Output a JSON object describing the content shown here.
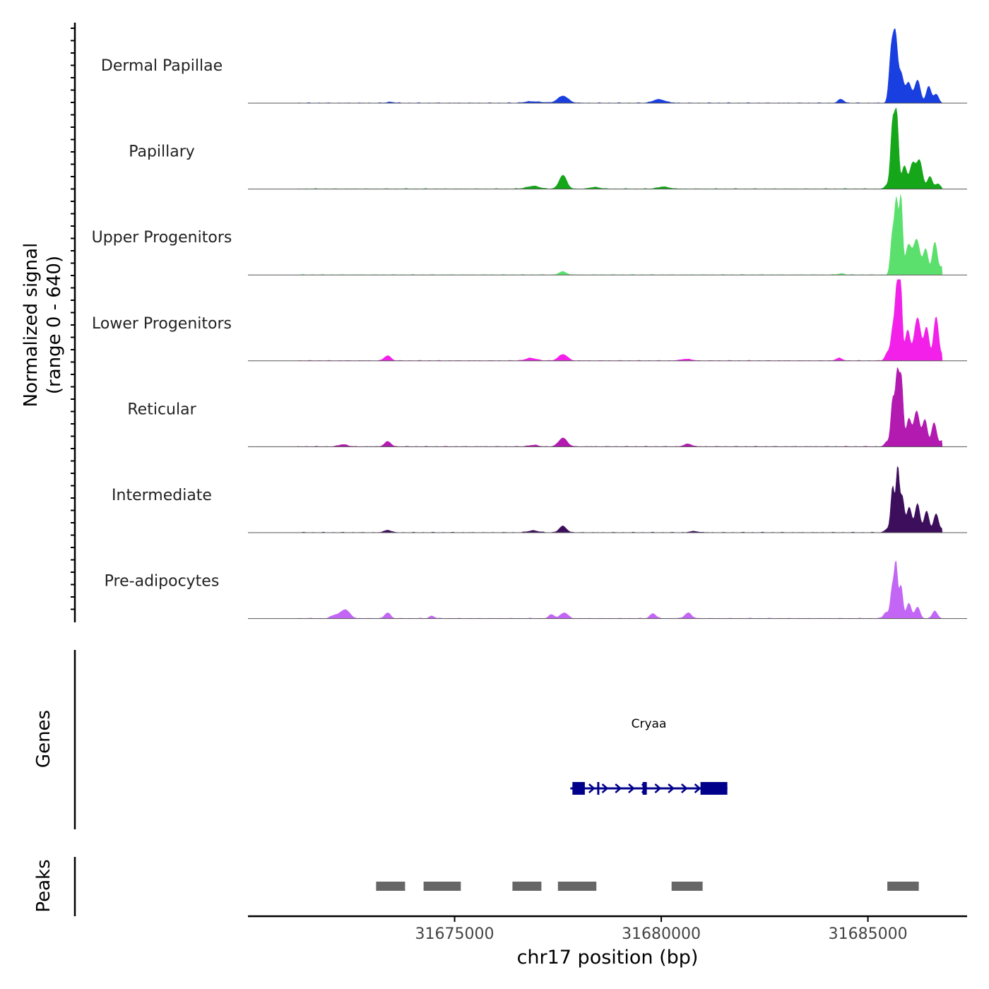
{
  "chart_data": {
    "type": "area",
    "title": "",
    "xlabel": "chr17 position (bp)",
    "ylabel_line1": "Normalized signal",
    "ylabel_line2": "(range 0 - 640)",
    "y_range": [
      0,
      640
    ],
    "x_range": [
      31670000,
      31687400
    ],
    "x_ticks": [
      31675000,
      31680000,
      31685000
    ],
    "x_tick_labels": [
      "31675000",
      "31680000",
      "31685000"
    ],
    "tracks": [
      {
        "name": "Dermal Papillae",
        "color": "#1a3fe0",
        "peaks": [
          [
            31677620,
            55,
            130
          ],
          [
            31679950,
            28,
            150
          ],
          [
            31673450,
            8,
            90
          ],
          [
            31676900,
            12,
            200
          ],
          [
            31684350,
            30,
            70
          ],
          [
            31685570,
            420,
            55
          ],
          [
            31685670,
            470,
            50
          ],
          [
            31685800,
            230,
            60
          ],
          [
            31685980,
            160,
            70
          ],
          [
            31686200,
            180,
            70
          ],
          [
            31686470,
            130,
            60
          ],
          [
            31686650,
            70,
            60
          ]
        ]
      },
      {
        "name": "Papillary",
        "color": "#15a61a",
        "peaks": [
          [
            31677620,
            110,
            90
          ],
          [
            31676900,
            22,
            160
          ],
          [
            31678400,
            14,
            120
          ],
          [
            31680050,
            16,
            150
          ],
          [
            31685470,
            30,
            60
          ],
          [
            31685600,
            520,
            50
          ],
          [
            31685700,
            550,
            45
          ],
          [
            31685880,
            180,
            60
          ],
          [
            31686080,
            200,
            70
          ],
          [
            31686250,
            220,
            70
          ],
          [
            31686500,
            100,
            60
          ],
          [
            31686700,
            40,
            60
          ]
        ]
      },
      {
        "name": "Upper Progenitors",
        "color": "#5be06d",
        "peaks": [
          [
            31677620,
            25,
            90
          ],
          [
            31670900,
            10,
            100
          ],
          [
            31684350,
            10,
            80
          ],
          [
            31685590,
            300,
            45
          ],
          [
            31685690,
            580,
            45
          ],
          [
            31685800,
            600,
            40
          ],
          [
            31685980,
            230,
            70
          ],
          [
            31686180,
            280,
            80
          ],
          [
            31686400,
            200,
            60
          ],
          [
            31686620,
            260,
            60
          ],
          [
            31686800,
            60,
            60
          ]
        ]
      },
      {
        "name": "Lower Progenitors",
        "color": "#f220e8",
        "peaks": [
          [
            31673380,
            40,
            80
          ],
          [
            31677620,
            50,
            110
          ],
          [
            31676850,
            20,
            140
          ],
          [
            31680600,
            14,
            120
          ],
          [
            31684300,
            20,
            80
          ],
          [
            31685480,
            70,
            60
          ],
          [
            31685600,
            230,
            45
          ],
          [
            31685700,
            560,
            45
          ],
          [
            31685790,
            600,
            40
          ],
          [
            31685960,
            240,
            60
          ],
          [
            31686200,
            340,
            80
          ],
          [
            31686420,
            260,
            60
          ],
          [
            31686650,
            350,
            60
          ],
          [
            31686850,
            60,
            60
          ]
        ]
      },
      {
        "name": "Reticular",
        "color": "#b21ab0",
        "peaks": [
          [
            31673380,
            40,
            80
          ],
          [
            31672300,
            18,
            100
          ],
          [
            31677620,
            70,
            100
          ],
          [
            31680650,
            22,
            90
          ],
          [
            31676900,
            12,
            120
          ],
          [
            31685470,
            40,
            60
          ],
          [
            31685600,
            360,
            45
          ],
          [
            31685710,
            560,
            45
          ],
          [
            31685810,
            520,
            45
          ],
          [
            31685990,
            220,
            60
          ],
          [
            31686180,
            280,
            70
          ],
          [
            31686380,
            210,
            60
          ],
          [
            31686600,
            190,
            60
          ],
          [
            31686800,
            50,
            60
          ]
        ]
      },
      {
        "name": "Intermediate",
        "color": "#3c0e5c",
        "peaks": [
          [
            31673380,
            20,
            80
          ],
          [
            31676900,
            16,
            120
          ],
          [
            31677620,
            50,
            90
          ],
          [
            31680800,
            10,
            100
          ],
          [
            31685470,
            30,
            60
          ],
          [
            31685600,
            360,
            45
          ],
          [
            31685720,
            500,
            40
          ],
          [
            31685830,
            280,
            50
          ],
          [
            31686000,
            200,
            60
          ],
          [
            31686200,
            230,
            60
          ],
          [
            31686420,
            170,
            60
          ],
          [
            31686650,
            150,
            60
          ],
          [
            31686850,
            40,
            60
          ]
        ]
      },
      {
        "name": "Pre-adipocytes",
        "color": "#c366f5",
        "peaks": [
          [
            31672350,
            70,
            110
          ],
          [
            31672100,
            25,
            90
          ],
          [
            31673380,
            45,
            70
          ],
          [
            31674450,
            20,
            60
          ],
          [
            31677350,
            30,
            70
          ],
          [
            31677650,
            45,
            90
          ],
          [
            31679800,
            40,
            70
          ],
          [
            31680650,
            45,
            80
          ],
          [
            31685440,
            50,
            60
          ],
          [
            31685590,
            240,
            45
          ],
          [
            31685680,
            420,
            40
          ],
          [
            31685800,
            260,
            45
          ],
          [
            31685990,
            120,
            60
          ],
          [
            31686200,
            90,
            60
          ],
          [
            31686620,
            60,
            60
          ]
        ]
      }
    ],
    "genes": {
      "label": "Genes",
      "name": "Cryaa",
      "strand": "+",
      "color": "#00008b",
      "start": 31677800,
      "end": 31681600,
      "exons": [
        [
          31677850,
          31678150
        ],
        [
          31678450,
          31678500
        ],
        [
          31679550,
          31679650
        ],
        [
          31680950,
          31681600
        ]
      ]
    },
    "peaks_track": {
      "label": "Peaks",
      "color": "#666666",
      "regions": [
        [
          31673100,
          31673800
        ],
        [
          31674250,
          31675150
        ],
        [
          31676400,
          31677100
        ],
        [
          31677500,
          31678430
        ],
        [
          31680250,
          31681000
        ],
        [
          31685470,
          31686230
        ]
      ]
    }
  }
}
